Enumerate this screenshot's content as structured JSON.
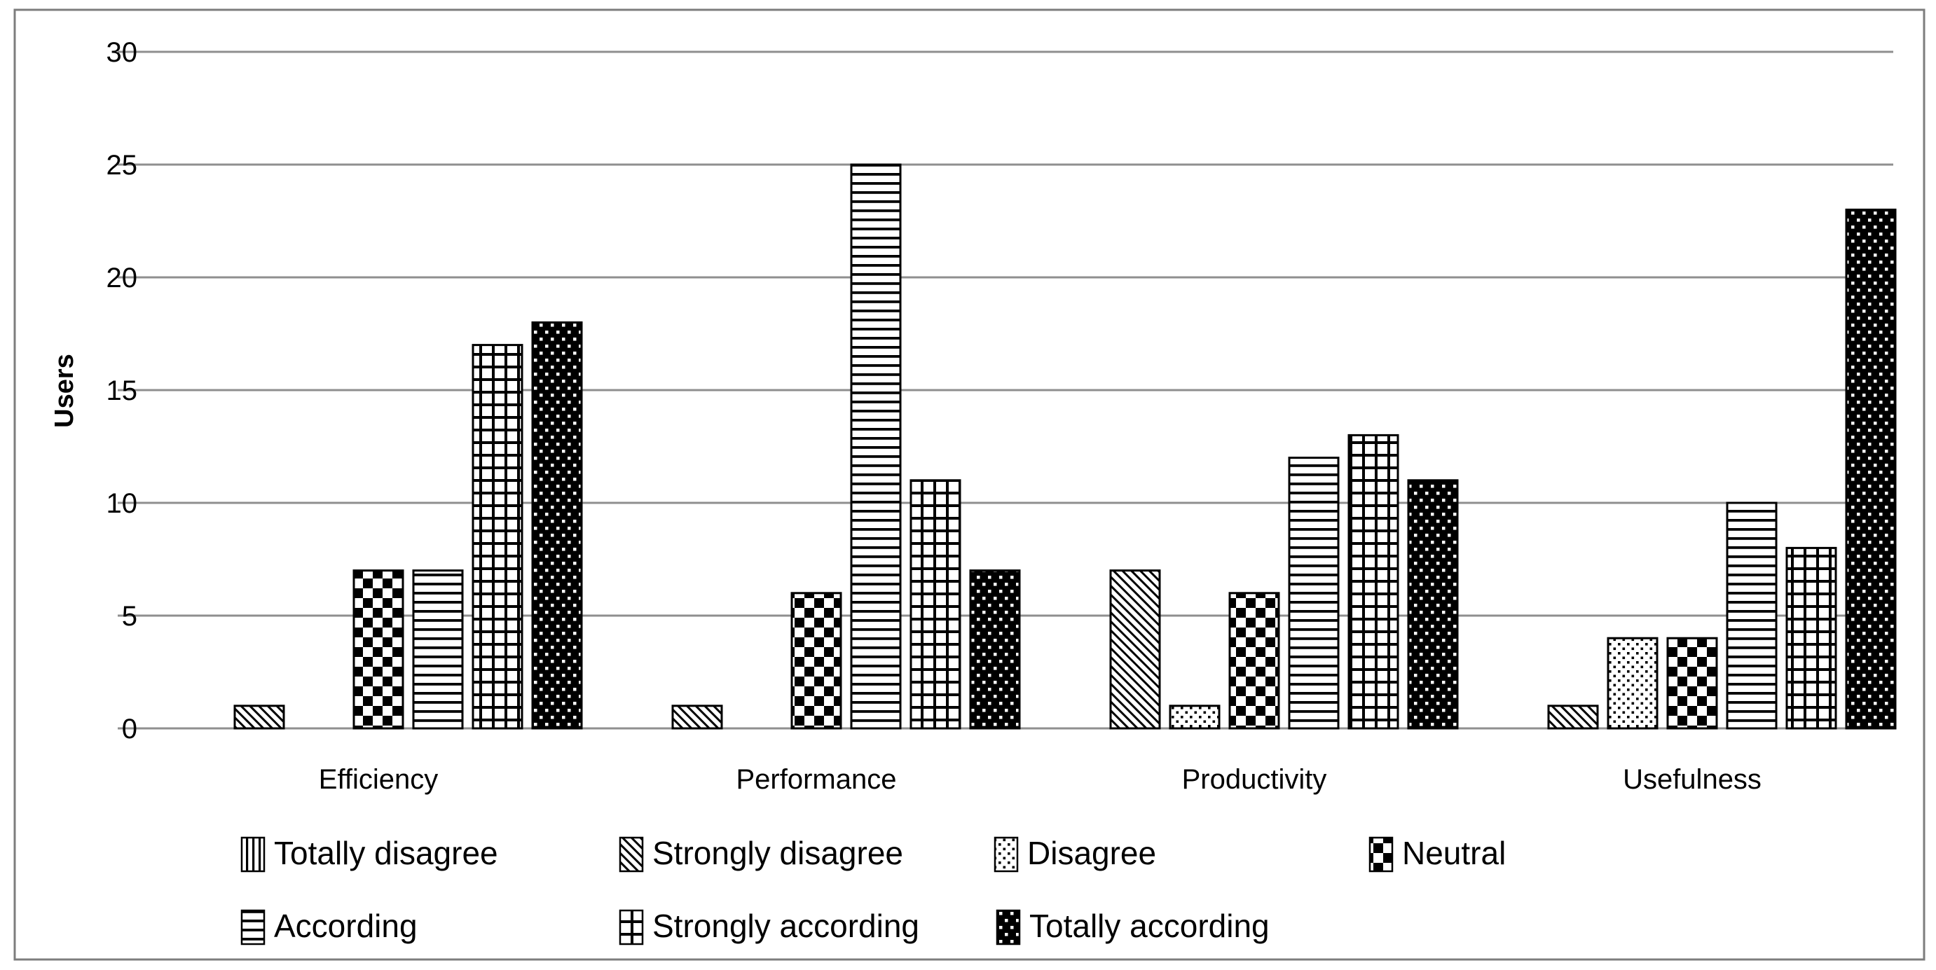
{
  "chart_data": {
    "type": "bar",
    "title": "",
    "xlabel": "",
    "ylabel": "Users",
    "categories": [
      "Efficiency",
      "Performance",
      "Productivity",
      "Usefulness"
    ],
    "series": [
      {
        "name": "Totally disagree",
        "pattern": "vertical-lines",
        "values": [
          0,
          0,
          0,
          0
        ]
      },
      {
        "name": "Strongly disagree",
        "pattern": "diagonal-lines",
        "values": [
          1,
          1,
          7,
          1
        ]
      },
      {
        "name": "Disagree",
        "pattern": "light-dots",
        "values": [
          0,
          0,
          1,
          4
        ]
      },
      {
        "name": "Neutral",
        "pattern": "checkerboard",
        "values": [
          7,
          6,
          6,
          4
        ]
      },
      {
        "name": "According",
        "pattern": "horizontal-lines",
        "values": [
          7,
          25,
          12,
          10
        ]
      },
      {
        "name": "Strongly according",
        "pattern": "grid",
        "values": [
          17,
          11,
          13,
          8
        ]
      },
      {
        "name": "Totally according",
        "pattern": "dark-dots",
        "values": [
          18,
          7,
          11,
          23
        ]
      }
    ],
    "ylim": [
      0,
      30
    ],
    "yticks": [
      0,
      5,
      10,
      15,
      20,
      25,
      30
    ],
    "grid": true,
    "legend_position": "bottom",
    "legend_rows": [
      [
        "Totally disagree",
        "Strongly disagree",
        "Disagree",
        "Neutral"
      ],
      [
        "According",
        "Strongly according",
        "Totally according"
      ]
    ]
  },
  "colors": {
    "foreground": "#000000",
    "background": "#ffffff",
    "gridline": "#8f8f8f",
    "frame_border": "#7d7d7d"
  }
}
